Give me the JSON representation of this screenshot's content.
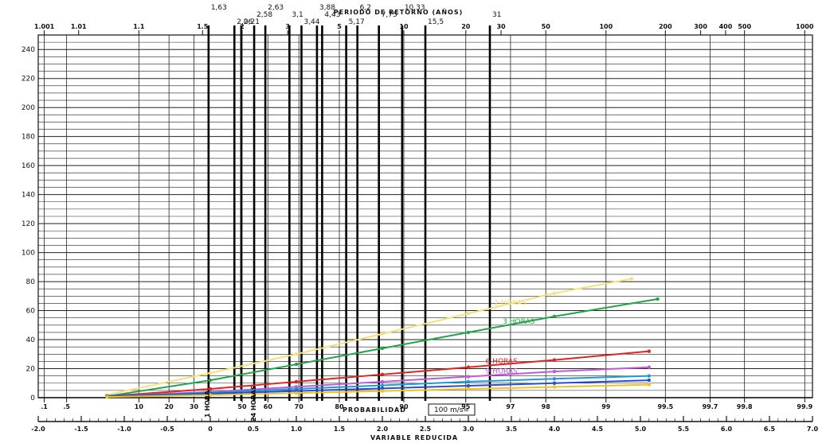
{
  "chart_data": {
    "type": "line",
    "title": "PERIODO DE RETORNO (AÑOS)",
    "xlabel_probability": "PROBABILIDAD",
    "xlabel_reduced": "VARIABLE REDUCIDA",
    "units_label": "100 m/s=",
    "left_labels": [
      "1 HORA",
      "24 HORAS"
    ],
    "y_ticks": [
      0,
      20,
      40,
      60,
      80,
      100,
      120,
      140,
      160,
      180,
      200,
      220,
      240
    ],
    "ylim": [
      0,
      250
    ],
    "x_reduced_range": [
      -2.0,
      7.0
    ],
    "reduced_ticks": [
      "-2.0",
      "-1.5",
      "-1.0",
      "-0.5",
      "0",
      "0.5",
      "1.0",
      "1.5",
      "2.0",
      "2.5",
      "3.0",
      "3.5",
      "4.0",
      "4.5",
      "5.0",
      "5.5",
      "6.0",
      "6.5",
      "7.0"
    ],
    "probability_ticks": [
      {
        "label": ".1",
        "y": -1.93
      },
      {
        "label": ".5",
        "y": -1.67
      },
      {
        "label": "10",
        "y": -0.83
      },
      {
        "label": "20",
        "y": -0.48
      },
      {
        "label": "30",
        "y": -0.19
      },
      {
        "label": "50",
        "y": 0.37
      },
      {
        "label": "60",
        "y": 0.67
      },
      {
        "label": "70",
        "y": 1.03
      },
      {
        "label": "80",
        "y": 1.5
      },
      {
        "label": "90",
        "y": 2.25
      },
      {
        "label": "95",
        "y": 2.97
      },
      {
        "label": "97",
        "y": 3.49
      },
      {
        "label": "98",
        "y": 3.9
      },
      {
        "label": "99",
        "y": 4.6
      },
      {
        "label": "99.5",
        "y": 5.29
      },
      {
        "label": "99.7",
        "y": 5.81
      },
      {
        "label": "99.8",
        "y": 6.21
      },
      {
        "label": "99.9",
        "y": 6.91
      }
    ],
    "return_period_top_ticks": [
      {
        "label": "1.001",
        "y": -1.93
      },
      {
        "label": "1.01",
        "y": -1.53
      },
      {
        "label": "1.1",
        "y": -0.83
      },
      {
        "label": "1.5",
        "y": -0.09
      },
      {
        "label": "2",
        "y": 0.37
      },
      {
        "label": "3",
        "y": 0.9
      },
      {
        "label": "5",
        "y": 1.5
      },
      {
        "label": "10",
        "y": 2.25
      },
      {
        "label": "20",
        "y": 2.97
      },
      {
        "label": "30",
        "y": 3.38
      },
      {
        "label": "50",
        "y": 3.9
      },
      {
        "label": "100",
        "y": 4.6
      },
      {
        "label": "200",
        "y": 5.29
      },
      {
        "label": "300",
        "y": 5.7
      },
      {
        "label": "400",
        "y": 5.99
      },
      {
        "label": "500",
        "y": 6.21
      },
      {
        "label": "1000",
        "y": 6.91
      }
    ],
    "marked_periods": [
      {
        "label": "2,21",
        "y": 0.36
      },
      {
        "label": "3,1",
        "y": 0.92
      },
      {
        "label": "3,88",
        "y": 1.24
      },
      {
        "label": "5,17",
        "y": 1.58
      },
      {
        "label": "7,75",
        "y": 1.96
      },
      {
        "label": "10,33",
        "y": 2.23
      },
      {
        "label": "15,5",
        "y": 2.5
      },
      {
        "label": "31",
        "y": 3.25
      },
      {
        "label": "1,63",
        "y": -0.02
      },
      {
        "label": "2,06",
        "y": 0.28
      },
      {
        "label": "2,58",
        "y": 0.51
      },
      {
        "label": "2,63",
        "y": 0.64
      },
      {
        "label": "3,44",
        "y": 1.06
      },
      {
        "label": "4,43",
        "y": 1.3
      },
      {
        "label": "6,2",
        "y": 1.71
      }
    ],
    "grid": true,
    "series": [
      {
        "name": "2 HORAS",
        "color": "#f3e27a",
        "x": [
          -1.2,
          0.0,
          1.0,
          2.0,
          3.0,
          4.0,
          4.9
        ],
        "y": [
          2,
          17,
          30,
          44,
          58,
          72,
          82
        ],
        "label_at": 3.3
      },
      {
        "name": "3 HORAS",
        "color": "#22a34a",
        "x": [
          -1.2,
          0.0,
          1.0,
          2.0,
          3.0,
          4.0,
          5.2
        ],
        "y": [
          1,
          12,
          23,
          34,
          45,
          56,
          68
        ],
        "label_at": 3.4
      },
      {
        "name": "6 HORAS",
        "color": "#e02424",
        "x": [
          -1.2,
          0.0,
          1.0,
          2.0,
          3.0,
          4.0,
          5.1
        ],
        "y": [
          1,
          6,
          11,
          16,
          21,
          26,
          32
        ],
        "label_at": 3.2
      },
      {
        "name": "9 HORAS",
        "color": "#c05ad6",
        "x": [
          -1.2,
          0.0,
          1.0,
          2.0,
          3.0,
          4.0,
          5.1
        ],
        "y": [
          1,
          4,
          7.5,
          11,
          14.5,
          18,
          21
        ],
        "label_at": 3.2
      },
      {
        "name": "",
        "color": "#1e9bd7",
        "x": [
          -1.2,
          0.0,
          1.0,
          2.0,
          3.0,
          4.0,
          5.1
        ],
        "y": [
          1,
          3.5,
          6,
          8.5,
          11,
          13,
          15
        ]
      },
      {
        "name": "",
        "color": "#2b4bd4",
        "x": [
          -1.2,
          0.0,
          1.0,
          2.0,
          3.0,
          4.0,
          5.1
        ],
        "y": [
          1,
          2.8,
          4.6,
          6.4,
          8.2,
          10,
          12
        ]
      },
      {
        "name": "",
        "color": "#f0c419",
        "x": [
          -1.2,
          0.0,
          1.0,
          2.0,
          3.0,
          4.0,
          5.1
        ],
        "y": [
          0.5,
          1.8,
          3.2,
          4.6,
          6,
          7.4,
          9
        ]
      }
    ]
  }
}
